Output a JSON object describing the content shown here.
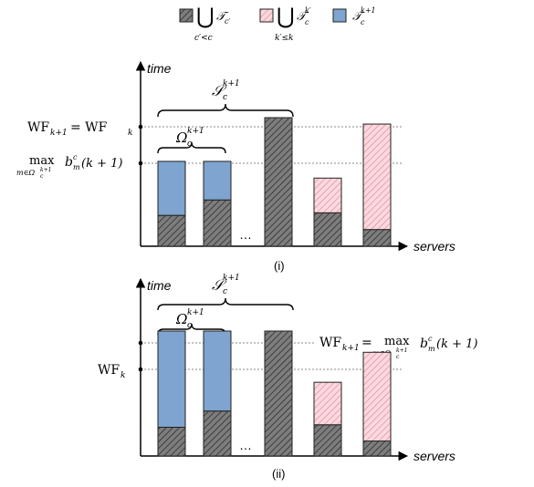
{
  "legend": [
    {
      "id": "prev-users",
      "symbol": "⋃",
      "symbol_sub": "c′<c",
      "term": "𝒯",
      "term_sub": "c′",
      "term_sup": "",
      "fill": "gray-hatched"
    },
    {
      "id": "prev-rounds",
      "symbol": "⋃",
      "symbol_sub": "k′≤k",
      "term": "𝒯",
      "term_sub": "c",
      "term_sup": "k′",
      "fill": "pink-hatched"
    },
    {
      "id": "current",
      "symbol": "",
      "symbol_sub": "",
      "term": "𝒯",
      "term_sub": "c",
      "term_sup": "k+1",
      "fill": "blue"
    }
  ],
  "colors": {
    "gray_fill": "#7d7d7d",
    "gray_hatch": "#2e2e2e",
    "pink_fill": "#fcd8df",
    "pink_hatch": "#d9828f",
    "blue_fill": "#7ea4cf",
    "outline": "#222222",
    "dotted": "#8a8a8a"
  },
  "axes": {
    "y_label": "time",
    "x_label": "servers",
    "ellipsis": "…"
  },
  "panels": [
    {
      "id": "i",
      "caption": "(i)",
      "S_label": {
        "main": "𝒮",
        "sub": "c",
        "sup": "k+1"
      },
      "Omega_label": {
        "main": "Ω",
        "sub": "c",
        "sup": "k+1"
      },
      "y_ticks": [
        {
          "id": "wf",
          "text": "WF",
          "sub": "k+1",
          "mid": " = WF",
          "sub2": "k",
          "extra": ""
        },
        {
          "id": "max",
          "text": "max",
          "sub": "m∈Ω",
          "subsub": "c",
          "subsup": "k+1",
          "term": "b",
          "term_sub": "m",
          "term_sup": "c",
          "arg": "(k + 1)"
        }
      ],
      "bars": [
        {
          "gray": 0.24,
          "pink": 0,
          "blue": 0.42
        },
        {
          "gray": 0.36,
          "pink": 0,
          "blue": 0.3
        },
        {
          "gray": 1.0,
          "pink": 0,
          "blue": 0
        },
        {
          "gray": 0.26,
          "pink": 0.27,
          "blue": 0
        },
        {
          "gray": 0.13,
          "pink": 0.82,
          "blue": 0
        }
      ]
    },
    {
      "id": "ii",
      "caption": "(ii)",
      "S_label": {
        "main": "𝒮",
        "sub": "c",
        "sup": "k+1"
      },
      "Omega_label": {
        "main": "Ω",
        "sub": "c",
        "sup": "k+1"
      },
      "y_ticks": [
        {
          "id": "wfk",
          "text": "WF",
          "sub": "k"
        }
      ],
      "right_label": {
        "text": "WF",
        "sub": "k+1",
        "mid": " = ",
        "max": "max",
        "max_sub": "m∈Ω",
        "max_subsub": "c",
        "max_subsup": "k+1",
        "term": "b",
        "term_sub": "m",
        "term_sup": "c",
        "arg": "(k + 1)"
      },
      "bars": [
        {
          "gray": 0.23,
          "pink": 0,
          "blue": 0.77
        },
        {
          "gray": 0.36,
          "pink": 0,
          "blue": 0.64
        },
        {
          "gray": 1.0,
          "pink": 0,
          "blue": 0
        },
        {
          "gray": 0.25,
          "pink": 0.34,
          "blue": 0
        },
        {
          "gray": 0.12,
          "pink": 0.71,
          "blue": 0
        }
      ]
    }
  ]
}
